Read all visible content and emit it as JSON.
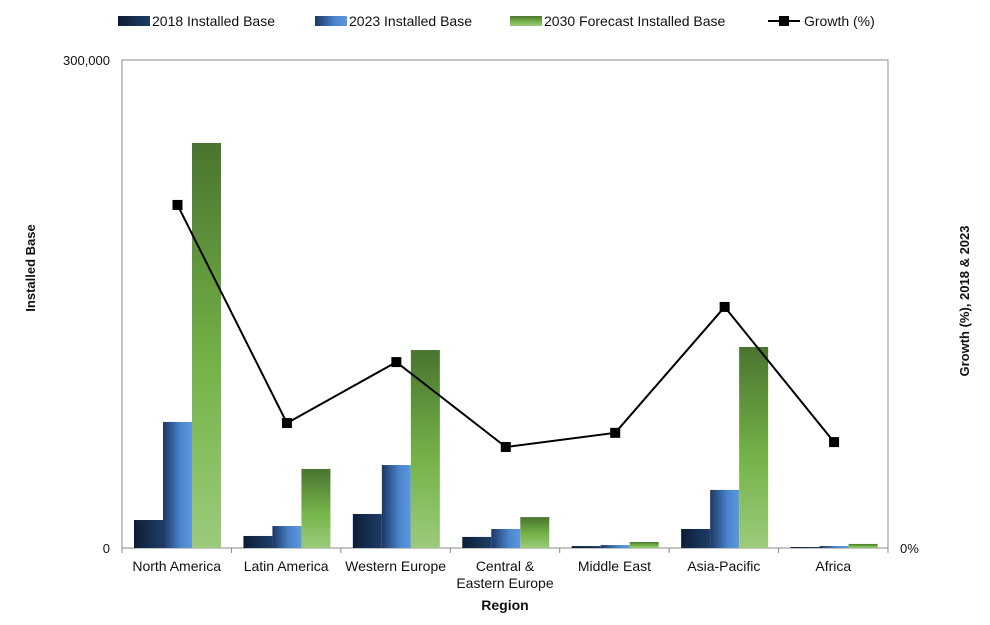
{
  "chart_data": {
    "type": "bar",
    "categories": [
      "North America",
      "Latin America",
      "Western Europe",
      "Central & Eastern Europe",
      "Middle East",
      "Asia-Pacific",
      "Africa"
    ],
    "category_lines": [
      [
        "North America"
      ],
      [
        "Latin America"
      ],
      [
        "Western Europe"
      ],
      [
        "Central &",
        "Eastern Europe"
      ],
      [
        "Middle East"
      ],
      [
        "Asia-Pacific"
      ],
      [
        "Africa"
      ]
    ],
    "series": [
      {
        "name": "2018 Installed Base",
        "type": "bar",
        "color": "#14284a",
        "values": [
          17200,
          7400,
          20900,
          6800,
          1200,
          11700,
          600
        ]
      },
      {
        "name": "2023 Installed Base",
        "type": "bar",
        "color": "#4a84cc",
        "values": [
          77500,
          13500,
          51000,
          11700,
          1800,
          35700,
          1200
        ]
      },
      {
        "name": "2030 Forecast Installed Base",
        "type": "bar",
        "color": "#6aaa44",
        "values": [
          249000,
          48600,
          121700,
          19000,
          3700,
          123600,
          2500
        ]
      },
      {
        "name": "Growth (%)",
        "type": "line",
        "axis": "right",
        "color": "#000000",
        "marker": "square",
        "values": [
          70.3,
          25.6,
          38.1,
          20.7,
          23.6,
          49.4,
          21.7
        ]
      }
    ],
    "xlabel": "Region",
    "ylabel": "Installed Base",
    "y2label": "Growth (%), 2018 & 2023",
    "ylim": [
      0,
      300000
    ],
    "y_ticks": [
      "0",
      "300,000"
    ],
    "y2lim": [
      0,
      100
    ],
    "y2_ticks": [
      "0%"
    ],
    "grid": false,
    "legend_position": "top"
  }
}
